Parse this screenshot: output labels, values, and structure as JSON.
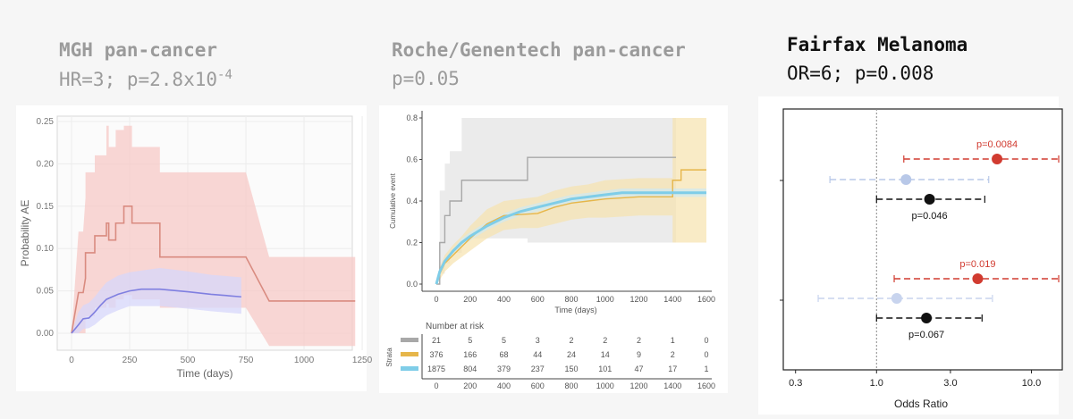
{
  "panels": [
    {
      "title": "MGH pan-cancer",
      "subtitle_main": "HR=3; p=2.8x10",
      "subtitle_exp": "-4"
    },
    {
      "title": "Roche/Genentech pan-cancer",
      "subtitle": "p=0.05"
    },
    {
      "title": "Fairfax Melanoma",
      "subtitle": "OR=6; p=0.008"
    }
  ],
  "chart_data": [
    {
      "type": "line",
      "xlabel": "Time (days)",
      "ylabel": "Probability AE",
      "xlim": [
        0,
        1250
      ],
      "ylim": [
        0,
        0.25
      ],
      "x_ticks": [
        "0",
        "250",
        "500",
        "750",
        "1000",
        "1250"
      ],
      "y_ticks": [
        "0.00",
        "0.05",
        "0.10",
        "0.15",
        "0.20",
        "0.25"
      ],
      "grid": true,
      "series": [
        {
          "color": "#d98b80",
          "band_color": "#f7c9c7",
          "x": [
            0,
            30,
            50,
            60,
            60,
            100,
            100,
            150,
            150,
            160,
            160,
            190,
            190,
            225,
            225,
            260,
            260,
            380,
            380,
            750,
            850,
            1220
          ],
          "y": [
            0,
            0.048,
            0.048,
            0.065,
            0.095,
            0.095,
            0.115,
            0.115,
            0.13,
            0.13,
            0.11,
            0.11,
            0.13,
            0.13,
            0.15,
            0.15,
            0.13,
            0.13,
            0.09,
            0.09,
            0.038,
            0.038
          ],
          "lower": [
            0,
            0,
            0,
            0,
            0.02,
            0.02,
            0.03,
            0.03,
            0.035,
            0.035,
            0.03,
            0.03,
            0.04,
            0.04,
            0.045,
            0.045,
            0.04,
            0.04,
            0.03,
            0.03,
            -0.015,
            -0.015
          ],
          "upper": [
            0,
            0.12,
            0.12,
            0.16,
            0.19,
            0.19,
            0.21,
            0.21,
            0.245,
            0.245,
            0.22,
            0.22,
            0.24,
            0.24,
            0.245,
            0.245,
            0.22,
            0.22,
            0.19,
            0.19,
            0.09,
            0.09
          ]
        },
        {
          "color": "#7f7fe0",
          "band_color": "#d7d7fb",
          "x": [
            0,
            30,
            50,
            75,
            100,
            125,
            150,
            200,
            250,
            300,
            380,
            500,
            600,
            730
          ],
          "y": [
            0,
            0.01,
            0.017,
            0.018,
            0.025,
            0.033,
            0.04,
            0.046,
            0.05,
            0.052,
            0.052,
            0.049,
            0.046,
            0.043
          ],
          "lower": [
            0,
            0,
            0.005,
            0.006,
            0.01,
            0.016,
            0.021,
            0.027,
            0.032,
            0.032,
            0.032,
            0.029,
            0.026,
            0.023
          ],
          "upper": [
            0,
            0.025,
            0.033,
            0.036,
            0.043,
            0.052,
            0.06,
            0.068,
            0.072,
            0.074,
            0.077,
            0.073,
            0.069,
            0.066
          ]
        }
      ]
    },
    {
      "type": "line",
      "xlabel": "Time (days)",
      "ylabel": "Cumulative event",
      "xlim": [
        0,
        1600
      ],
      "ylim": [
        0,
        0.8
      ],
      "x_ticks": [
        "0",
        "200",
        "400",
        "600",
        "800",
        "1000",
        "1200",
        "1400",
        "1600"
      ],
      "y_ticks": [
        "0.0",
        "0.2",
        "0.4",
        "0.6",
        "0.8"
      ],
      "series": [
        {
          "color": "#a8a8a8",
          "band_color": "#e2e2e2",
          "x": [
            0,
            20,
            20,
            50,
            50,
            80,
            80,
            150,
            150,
            540,
            540,
            1420
          ],
          "y": [
            0,
            0,
            0.2,
            0.2,
            0.33,
            0.33,
            0.4,
            0.4,
            0.5,
            0.5,
            0.61,
            0.61
          ],
          "lower": [
            0,
            0,
            0.05,
            0.05,
            0.1,
            0.1,
            0.15,
            0.15,
            0.22,
            0.22,
            0.2,
            0.2
          ],
          "upper": [
            0,
            0,
            0.45,
            0.45,
            0.58,
            0.58,
            0.64,
            0.64,
            0.8,
            0.8,
            0.8,
            0.8
          ]
        },
        {
          "color": "#e6b64a",
          "band_color": "#f6e2ae",
          "x": [
            0,
            20,
            50,
            100,
            150,
            200,
            300,
            400,
            500,
            600,
            700,
            800,
            900,
            1000,
            1200,
            1400,
            1400,
            1450,
            1450,
            1600
          ],
          "y": [
            0,
            0.05,
            0.1,
            0.14,
            0.18,
            0.22,
            0.29,
            0.33,
            0.335,
            0.34,
            0.37,
            0.39,
            0.4,
            0.41,
            0.42,
            0.42,
            0.5,
            0.5,
            0.55,
            0.55
          ],
          "lower": [
            0,
            0.02,
            0.06,
            0.1,
            0.13,
            0.16,
            0.22,
            0.26,
            0.27,
            0.27,
            0.29,
            0.31,
            0.32,
            0.32,
            0.33,
            0.33,
            0.2,
            0.2,
            0.2,
            0.2
          ],
          "upper": [
            0,
            0.08,
            0.14,
            0.19,
            0.23,
            0.28,
            0.36,
            0.4,
            0.41,
            0.42,
            0.45,
            0.47,
            0.48,
            0.5,
            0.51,
            0.51,
            0.8,
            0.8,
            0.8,
            0.8
          ]
        },
        {
          "color": "#7fcde8",
          "band_color": "#cde9f4",
          "x": [
            0,
            20,
            50,
            100,
            150,
            200,
            300,
            400,
            500,
            600,
            700,
            800,
            900,
            1000,
            1100,
            1200,
            1300,
            1400,
            1500,
            1600
          ],
          "y": [
            0,
            0.06,
            0.11,
            0.16,
            0.2,
            0.23,
            0.28,
            0.32,
            0.35,
            0.37,
            0.39,
            0.41,
            0.42,
            0.43,
            0.44,
            0.44,
            0.44,
            0.44,
            0.44,
            0.44
          ],
          "lower": [
            0,
            0.05,
            0.1,
            0.15,
            0.18,
            0.21,
            0.26,
            0.3,
            0.33,
            0.35,
            0.37,
            0.39,
            0.4,
            0.41,
            0.42,
            0.42,
            0.42,
            0.42,
            0.42,
            0.42
          ],
          "upper": [
            0,
            0.07,
            0.12,
            0.17,
            0.22,
            0.25,
            0.3,
            0.34,
            0.37,
            0.39,
            0.41,
            0.43,
            0.44,
            0.45,
            0.46,
            0.46,
            0.46,
            0.46,
            0.46,
            0.46
          ]
        }
      ],
      "risk_table": {
        "title": "Number at risk",
        "ylabel": "Strata",
        "x_ticks": [
          "0",
          "200",
          "400",
          "600",
          "800",
          "1000",
          "1200",
          "1400",
          "1600"
        ],
        "rows": [
          {
            "color": "#a8a8a8",
            "values": [
              "21",
              "5",
              "5",
              "3",
              "2",
              "2",
              "2",
              "1",
              "0"
            ]
          },
          {
            "color": "#e6b64a",
            "values": [
              "376",
              "166",
              "68",
              "44",
              "24",
              "14",
              "9",
              "2",
              "0"
            ]
          },
          {
            "color": "#7fcde8",
            "values": [
              "1875",
              "804",
              "379",
              "237",
              "150",
              "101",
              "47",
              "17",
              "1"
            ]
          }
        ]
      }
    },
    {
      "type": "scatter",
      "xlabel": "Odds Ratio",
      "xscale": "log",
      "xlim": [
        0.25,
        15
      ],
      "x_ticks": [
        "0.3",
        "1.0",
        "3.0",
        "10.0"
      ],
      "reference_line": 1.0,
      "points": [
        {
          "group": 1,
          "or": 6.0,
          "lo": 1.5,
          "hi": 15,
          "color": "#d13b30",
          "label": "p=0.0084",
          "dashed": true
        },
        {
          "group": 1,
          "or": 1.55,
          "lo": 0.5,
          "hi": 5.3,
          "color": "#b8c8e8",
          "label": "",
          "dashed": true
        },
        {
          "group": 1,
          "or": 2.2,
          "lo": 1.0,
          "hi": 5.0,
          "color": "#111111",
          "label": "p=0.046",
          "dashed": true
        },
        {
          "group": 2,
          "or": 4.5,
          "lo": 1.3,
          "hi": 15,
          "color": "#d13b30",
          "label": "p=0.019",
          "dashed": true
        },
        {
          "group": 2,
          "or": 1.35,
          "lo": 0.42,
          "hi": 5.6,
          "color": "#c8d4ee",
          "label": "",
          "dashed": true
        },
        {
          "group": 2,
          "or": 2.1,
          "lo": 1.0,
          "hi": 4.8,
          "color": "#111111",
          "label": "p=0.067",
          "dashed": true
        }
      ]
    }
  ]
}
